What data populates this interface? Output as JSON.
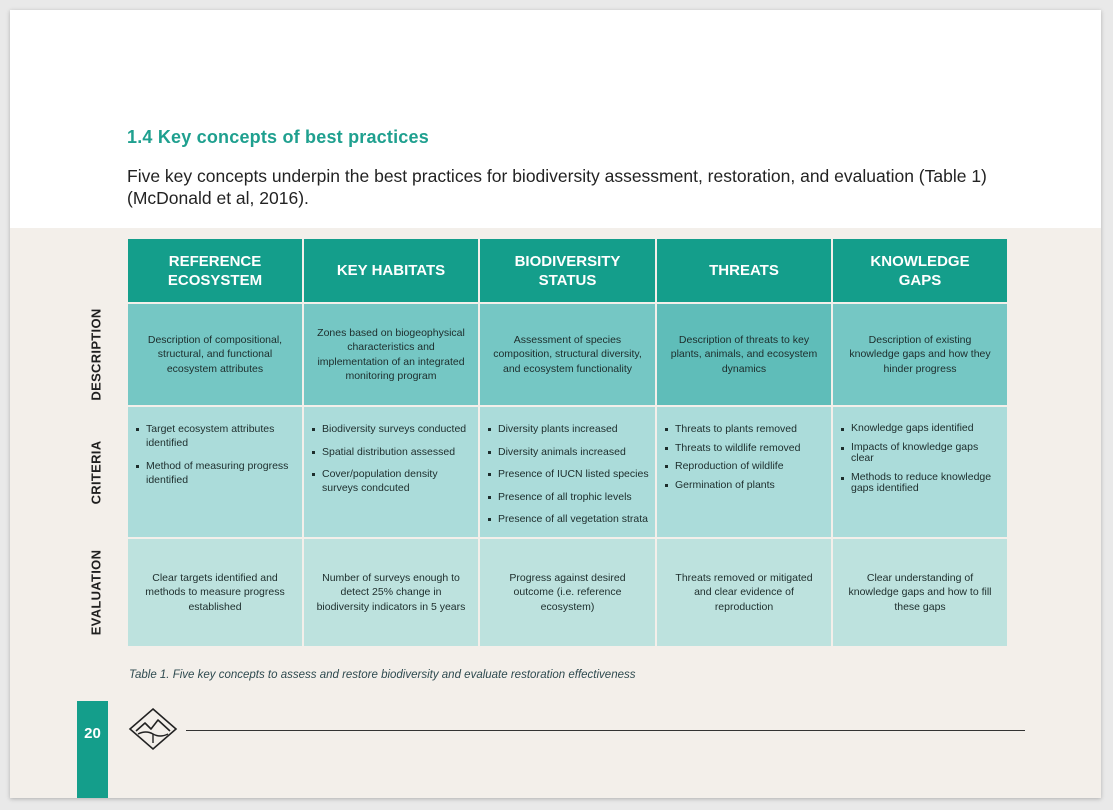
{
  "section": {
    "title": "1.4 Key concepts of best practices",
    "intro": "Five key concepts underpin the best practices for biodiversity assessment, restoration, and evaluation (Table 1) (McDonald et al, 2016)."
  },
  "table": {
    "columns": [
      "REFERENCE ECOSYSTEM",
      "KEY HABITATS",
      "BIODIVERSITY STATUS",
      "THREATS",
      "KNOWLEDGE GAPS"
    ],
    "row_labels": [
      "DESCRIPTION",
      "CRITERIA",
      "EVALUATION"
    ],
    "description": [
      "Description of compositional, structural, and functional ecosystem attributes",
      "Zones based on biogeophysical characteristics and implementation of an integrated monitoring program",
      "Assessment of species composition, structural diversity, and ecosystem functionality",
      "Description of threats to key plants, animals, and ecosystem dynamics",
      "Description of existing knowledge gaps and how they hinder progress"
    ],
    "criteria": [
      [
        "Target ecosystem attributes identified",
        "Method of measuring progress identified"
      ],
      [
        "Biodiversity surveys conducted",
        "Spatial distribution assessed",
        "Cover/population density surveys condcuted"
      ],
      [
        "Diversity plants increased",
        "Diversity animals increased",
        "Presence of IUCN listed species",
        "Presence of all trophic levels",
        "Presence of all vegetation strata"
      ],
      [
        "Threats to plants removed",
        "Threats to wildlife removed",
        "Reproduction of wildlife",
        "Germination of plants"
      ],
      [
        "Knowledge gaps identified",
        "Impacts of knowledge gaps clear",
        "Methods to reduce knowledge gaps identified"
      ]
    ],
    "evaluation": [
      "Clear targets identified and methods to measure progress established",
      "Number of surveys enough to detect 25% change in biodiversity indicators in 5 years",
      "Progress against desired outcome (i.e. reference ecosystem)",
      "Threats removed or mitigated and clear evidence of reproduction",
      "Clear understanding of knowledge gaps and how to fill these gaps"
    ]
  },
  "caption": "Table 1. Five key concepts to assess and restore biodiversity and evaluate restoration effectiveness",
  "footer": {
    "page_number": "20",
    "logo_icon": "mountain-diamond-icon"
  },
  "colors": {
    "accent": "#149e8b",
    "description_bg": "#75c7c4",
    "criteria_bg": "#abdcda",
    "evaluation_bg": "#bde2de",
    "page_bg": "#f3efea"
  }
}
